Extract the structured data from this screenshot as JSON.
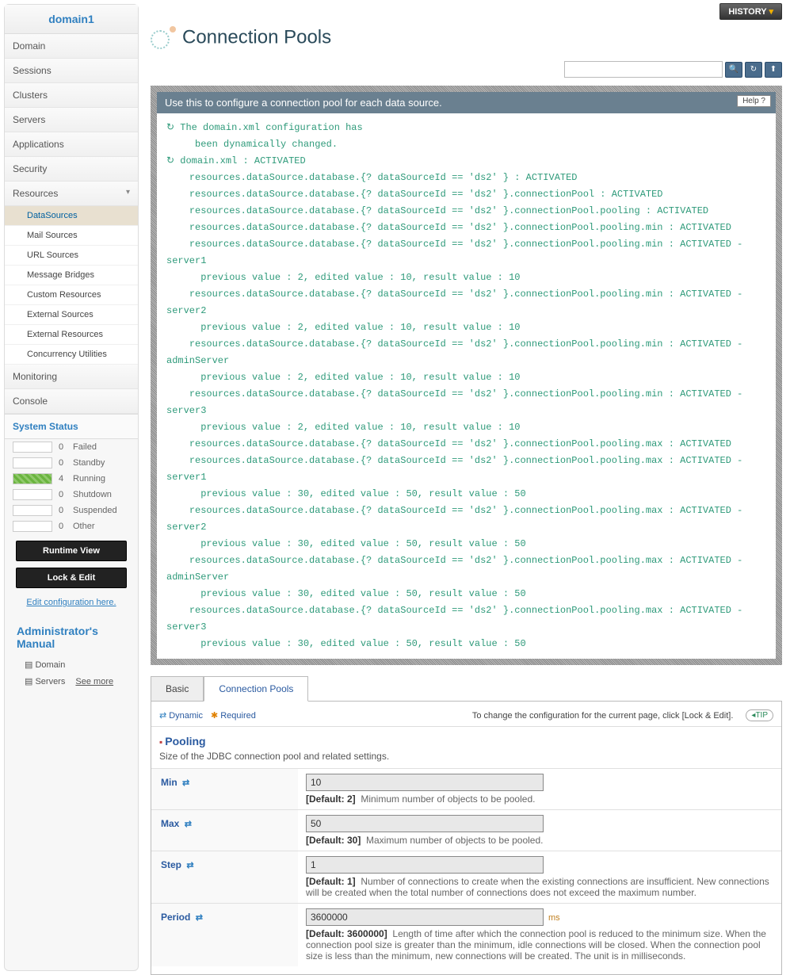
{
  "sidebar": {
    "domain": "domain1",
    "nav": [
      "Domain",
      "Sessions",
      "Clusters",
      "Servers",
      "Applications",
      "Security",
      "Resources"
    ],
    "resources_sub": [
      "DataSources",
      "Mail Sources",
      "URL Sources",
      "Message Bridges",
      "Custom Resources",
      "External Sources",
      "External Resources",
      "Concurrency Utilities"
    ],
    "nav_after": [
      "Monitoring",
      "Console"
    ],
    "status_header": "System Status",
    "status": [
      {
        "count": "0",
        "label": "Failed",
        "cls": ""
      },
      {
        "count": "0",
        "label": "Standby",
        "cls": ""
      },
      {
        "count": "4",
        "label": "Running",
        "cls": "running"
      },
      {
        "count": "0",
        "label": "Shutdown",
        "cls": ""
      },
      {
        "count": "0",
        "label": "Suspended",
        "cls": ""
      },
      {
        "count": "0",
        "label": "Other",
        "cls": ""
      }
    ],
    "btn_runtime": "Runtime View",
    "btn_lock": "Lock & Edit",
    "edit_link": "Edit configuration here.",
    "manual_header": "Administrator's Manual",
    "manual_items": [
      "Domain",
      "Servers"
    ],
    "see_more": "See more"
  },
  "top": {
    "history": "HISTORY",
    "search_placeholder": ""
  },
  "page": {
    "title": "Connection Pools",
    "panel_header": "Use this to configure a connection pool for each data source.",
    "help": "Help",
    "log": "↻ The domain.xml configuration has\n     been dynamically changed.\n↻ domain.xml : ACTIVATED\n    resources.dataSource.database.{? dataSourceId == 'ds2' } : ACTIVATED\n    resources.dataSource.database.{? dataSourceId == 'ds2' }.connectionPool : ACTIVATED\n    resources.dataSource.database.{? dataSourceId == 'ds2' }.connectionPool.pooling : ACTIVATED\n    resources.dataSource.database.{? dataSourceId == 'ds2' }.connectionPool.pooling.min : ACTIVATED\n    resources.dataSource.database.{? dataSourceId == 'ds2' }.connectionPool.pooling.min : ACTIVATED - server1\n      previous value : 2, edited value : 10, result value : 10\n    resources.dataSource.database.{? dataSourceId == 'ds2' }.connectionPool.pooling.min : ACTIVATED - server2\n      previous value : 2, edited value : 10, result value : 10\n    resources.dataSource.database.{? dataSourceId == 'ds2' }.connectionPool.pooling.min : ACTIVATED - adminServer\n      previous value : 2, edited value : 10, result value : 10\n    resources.dataSource.database.{? dataSourceId == 'ds2' }.connectionPool.pooling.min : ACTIVATED - server3\n      previous value : 2, edited value : 10, result value : 10\n    resources.dataSource.database.{? dataSourceId == 'ds2' }.connectionPool.pooling.max : ACTIVATED\n    resources.dataSource.database.{? dataSourceId == 'ds2' }.connectionPool.pooling.max : ACTIVATED - server1\n      previous value : 30, edited value : 50, result value : 50\n    resources.dataSource.database.{? dataSourceId == 'ds2' }.connectionPool.pooling.max : ACTIVATED - server2\n      previous value : 30, edited value : 50, result value : 50\n    resources.dataSource.database.{? dataSourceId == 'ds2' }.connectionPool.pooling.max : ACTIVATED - adminServer\n      previous value : 30, edited value : 50, result value : 50\n    resources.dataSource.database.{? dataSourceId == 'ds2' }.connectionPool.pooling.max : ACTIVATED - server3\n      previous value : 30, edited value : 50, result value : 50"
  },
  "tabs": {
    "basic": "Basic",
    "pools": "Connection Pools"
  },
  "legend": {
    "dynamic": "Dynamic",
    "required": "Required",
    "tip_text": "To change the configuration for the current page, click [Lock & Edit].",
    "tip": "TIP"
  },
  "section": {
    "title": "Pooling",
    "desc": "Size of the JDBC connection pool and related settings."
  },
  "fields": [
    {
      "label": "Min",
      "value": "10",
      "default": "[Default: 2]",
      "desc": "Minimum number of objects to be pooled.",
      "unit": ""
    },
    {
      "label": "Max",
      "value": "50",
      "default": "[Default: 30]",
      "desc": "Maximum number of objects to be pooled.",
      "unit": ""
    },
    {
      "label": "Step",
      "value": "1",
      "default": "[Default: 1]",
      "desc": "Number of connections to create when the existing connections are insufficient. New connections will be created when the total number of connections does not exceed the maximum number.",
      "unit": ""
    },
    {
      "label": "Period",
      "value": "3600000",
      "default": "[Default: 3600000]",
      "desc": "Length of time after which the connection pool is reduced to the minimum size. When the connection pool size is greater than the minimum, idle connections will be closed. When the connection pool size is less than the minimum, new connections will be created. The unit is in milliseconds.",
      "unit": "ms"
    }
  ]
}
